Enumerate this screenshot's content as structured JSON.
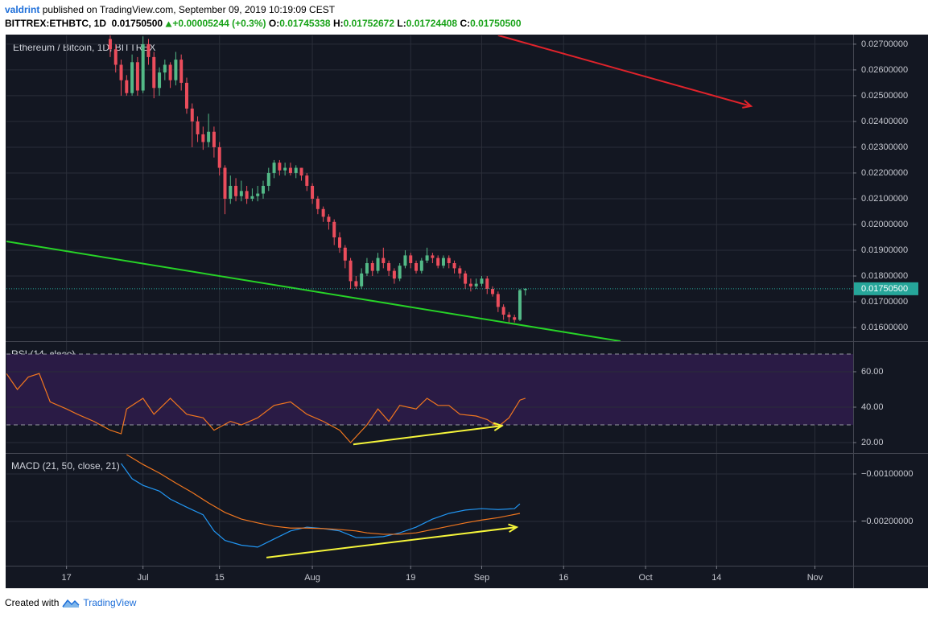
{
  "header": {
    "author": "valdrint",
    "published": "published on TradingView.com, September 09, 2019 10:19:09 CEST",
    "symbol": "BITTREX:ETHBTC, 1D",
    "last": "0.01750500",
    "change": "+0.00005244 (+0.3%)",
    "ohlc": [
      {
        "label": "O:",
        "value": "0.01745338"
      },
      {
        "label": "H:",
        "value": "0.01752672"
      },
      {
        "label": "L:",
        "value": "0.01724408"
      },
      {
        "label": "C:",
        "value": "0.01750500"
      }
    ]
  },
  "footer": {
    "created": "Created with",
    "brand": "TradingView"
  },
  "chart_data": [
    {
      "type": "candlestick",
      "title": "Ethereum / Bitcoin, 1D, BITTREX",
      "up_color": "#53b987",
      "down_color": "#eb4d5c",
      "x": [
        19,
        20,
        21,
        22,
        23,
        24,
        25,
        26,
        27,
        28,
        29,
        30,
        31,
        32,
        33,
        34,
        35,
        36,
        37,
        38,
        39,
        40,
        41,
        42,
        43,
        44,
        45,
        46,
        47,
        48,
        49,
        50,
        51,
        52,
        53,
        54,
        55,
        56,
        57,
        58,
        59,
        60,
        61,
        62,
        63,
        64,
        65,
        66,
        67,
        68,
        69,
        70,
        71,
        72,
        73,
        74,
        75,
        76,
        77,
        78,
        79,
        80,
        81,
        82,
        83,
        84,
        85,
        86,
        87,
        88,
        89,
        90,
        91,
        92,
        93,
        94,
        95
      ],
      "open": [
        0.0272,
        0.0268,
        0.0262,
        0.0256,
        0.0251,
        0.0263,
        0.0252,
        0.027,
        0.0265,
        0.0253,
        0.0259,
        0.0262,
        0.0256,
        0.0264,
        0.0255,
        0.0245,
        0.024,
        0.0235,
        0.0232,
        0.0236,
        0.023,
        0.0222,
        0.021,
        0.0215,
        0.0211,
        0.0213,
        0.021,
        0.0211,
        0.0212,
        0.0215,
        0.022,
        0.0224,
        0.0221,
        0.0222,
        0.022,
        0.0222,
        0.0219,
        0.0215,
        0.021,
        0.0206,
        0.0203,
        0.0201,
        0.0195,
        0.0191,
        0.0186,
        0.0178,
        0.0176,
        0.0181,
        0.0185,
        0.0182,
        0.0187,
        0.0185,
        0.0182,
        0.0179,
        0.0184,
        0.0188,
        0.0185,
        0.0182,
        0.0186,
        0.0188,
        0.0187,
        0.0184,
        0.0187,
        0.0185,
        0.0183,
        0.0181,
        0.0177,
        0.0176,
        0.0177,
        0.0179,
        0.0175,
        0.0173,
        0.0168,
        0.0165,
        0.0164,
        0.0163,
        0.01745338
      ],
      "high": [
        0.0274,
        0.027,
        0.0264,
        0.0258,
        0.0266,
        0.0265,
        0.0273,
        0.0272,
        0.0267,
        0.0261,
        0.0264,
        0.0263,
        0.0267,
        0.0266,
        0.0257,
        0.0247,
        0.0242,
        0.0238,
        0.0243,
        0.0238,
        0.0232,
        0.0223,
        0.0219,
        0.0218,
        0.0217,
        0.0215,
        0.0214,
        0.0215,
        0.0217,
        0.0222,
        0.0225,
        0.0225,
        0.0224,
        0.0224,
        0.0223,
        0.0222,
        0.022,
        0.0216,
        0.0211,
        0.0207,
        0.0204,
        0.0202,
        0.0197,
        0.0192,
        0.0187,
        0.018,
        0.0183,
        0.0187,
        0.0186,
        0.0189,
        0.0191,
        0.0186,
        0.0183,
        0.0185,
        0.019,
        0.0189,
        0.0186,
        0.0187,
        0.0191,
        0.0189,
        0.0188,
        0.0188,
        0.0188,
        0.0186,
        0.0184,
        0.0182,
        0.0179,
        0.0179,
        0.018,
        0.018,
        0.0176,
        0.0174,
        0.0169,
        0.0166,
        0.0165,
        0.0175,
        0.01752672
      ],
      "low": [
        0.0265,
        0.0259,
        0.025,
        0.025,
        0.025,
        0.025,
        0.0251,
        0.0262,
        0.0249,
        0.025,
        0.0256,
        0.0253,
        0.0254,
        0.0252,
        0.0243,
        0.023,
        0.0232,
        0.0229,
        0.023,
        0.0226,
        0.0219,
        0.0204,
        0.0208,
        0.0209,
        0.0209,
        0.0208,
        0.0209,
        0.0209,
        0.021,
        0.0213,
        0.0218,
        0.0219,
        0.0219,
        0.0219,
        0.0218,
        0.0217,
        0.0213,
        0.0208,
        0.0204,
        0.0201,
        0.0198,
        0.0192,
        0.0189,
        0.0183,
        0.0175,
        0.0175,
        0.0175,
        0.018,
        0.018,
        0.0181,
        0.0183,
        0.018,
        0.0177,
        0.0178,
        0.0183,
        0.0183,
        0.0181,
        0.0181,
        0.0185,
        0.0185,
        0.0183,
        0.0183,
        0.0183,
        0.0181,
        0.0179,
        0.0175,
        0.0174,
        0.0175,
        0.0176,
        0.0173,
        0.0172,
        0.0166,
        0.0163,
        0.0162,
        0.0162,
        0.01625,
        0.01724408
      ],
      "close": [
        0.0268,
        0.0262,
        0.0256,
        0.0251,
        0.0263,
        0.0252,
        0.027,
        0.0265,
        0.0253,
        0.0259,
        0.0262,
        0.0256,
        0.0264,
        0.0255,
        0.0245,
        0.024,
        0.0235,
        0.0232,
        0.0236,
        0.023,
        0.0222,
        0.021,
        0.0215,
        0.0211,
        0.0213,
        0.021,
        0.0211,
        0.0212,
        0.0215,
        0.022,
        0.0224,
        0.0221,
        0.0222,
        0.022,
        0.0222,
        0.0219,
        0.0215,
        0.021,
        0.0206,
        0.0203,
        0.0201,
        0.0195,
        0.0191,
        0.0186,
        0.0178,
        0.0176,
        0.0181,
        0.0185,
        0.0182,
        0.0187,
        0.0185,
        0.0182,
        0.0179,
        0.0184,
        0.0188,
        0.0185,
        0.0182,
        0.0186,
        0.0188,
        0.0187,
        0.0184,
        0.0187,
        0.0185,
        0.0183,
        0.0181,
        0.0177,
        0.0176,
        0.0177,
        0.0179,
        0.0175,
        0.0173,
        0.0168,
        0.0165,
        0.0164,
        0.0163,
        0.01745,
        0.017505
      ],
      "xlim": [
        0,
        155
      ],
      "xticks": [
        {
          "value": 11,
          "label": "17"
        },
        {
          "value": 25,
          "label": "Jul"
        },
        {
          "value": 39,
          "label": "15"
        },
        {
          "value": 56,
          "label": "Aug"
        },
        {
          "value": 74,
          "label": "19"
        },
        {
          "value": 87,
          "label": "Sep"
        },
        {
          "value": 102,
          "label": "16"
        },
        {
          "value": 117,
          "label": "Oct"
        },
        {
          "value": 130,
          "label": "14"
        },
        {
          "value": 148,
          "label": "Nov"
        }
      ],
      "ylim": [
        0.01547,
        0.02734
      ],
      "yticks": [
        {
          "value": 0.016,
          "label": "0.01600000"
        },
        {
          "value": 0.017,
          "label": "0.01700000"
        },
        {
          "value": 0.018,
          "label": "0.01800000"
        },
        {
          "value": 0.019,
          "label": "0.01900000"
        },
        {
          "value": 0.02,
          "label": "0.02000000"
        },
        {
          "value": 0.021,
          "label": "0.02100000"
        },
        {
          "value": 0.022,
          "label": "0.02200000"
        },
        {
          "value": 0.023,
          "label": "0.02300000"
        },
        {
          "value": 0.024,
          "label": "0.02400000"
        },
        {
          "value": 0.025,
          "label": "0.02500000"
        },
        {
          "value": 0.026,
          "label": "0.02600000"
        },
        {
          "value": 0.027,
          "label": "0.02700000"
        }
      ],
      "grid": true,
      "last_price": {
        "value": 0.017505,
        "label": "0.01750500",
        "color": "#26a69a"
      },
      "lines": [
        {
          "color": "#27d327",
          "arrow": false,
          "x": [
            0,
            112.4
          ],
          "y": [
            0.019344,
            0.015469
          ]
        },
        {
          "color": "#e0232b",
          "arrow": true,
          "x": [
            90,
            136.3
          ],
          "y": [
            0.027344,
            0.024594
          ]
        }
      ]
    },
    {
      "type": "line",
      "title": "RSI (14, close)",
      "ylim": [
        14.1,
        76.8
      ],
      "yticks": [
        {
          "value": 20,
          "label": "20.00"
        },
        {
          "value": 40,
          "label": "40.00"
        },
        {
          "value": 60,
          "label": "60.00"
        }
      ],
      "band": [
        30,
        70
      ],
      "band_color": "#2a1b45",
      "hlines": [
        30,
        70
      ],
      "grid": true,
      "series": [
        {
          "color": "#f0761f",
          "x": [
            0,
            2,
            4,
            6,
            8,
            11,
            13,
            16,
            19,
            21,
            22,
            25,
            27,
            30,
            33,
            36,
            38,
            41,
            43,
            46,
            49,
            52,
            55,
            58,
            61,
            63,
            66,
            68,
            70,
            72,
            75,
            77,
            79,
            81,
            83,
            86,
            88,
            90,
            92,
            94,
            95
          ],
          "values": [
            59,
            50,
            57,
            59,
            43,
            39,
            36,
            32,
            27,
            25,
            39,
            45,
            36,
            45,
            36,
            34,
            27,
            32,
            30,
            34,
            41,
            43,
            36,
            32,
            27,
            20,
            30,
            39,
            32,
            41,
            39,
            45,
            41,
            41,
            36,
            35,
            33,
            29,
            34,
            44,
            45
          ]
        }
      ],
      "lines": [
        {
          "color": "#f5f53a",
          "arrow": true,
          "x": [
            63.5,
            90.7
          ],
          "y": [
            19,
            29.5
          ]
        }
      ]
    },
    {
      "type": "line",
      "title": "MACD (21, 50, close, 21)",
      "ylim": [
        -0.002932,
        -0.000576
      ],
      "yticks": [
        {
          "value": -0.002,
          "label": "−0.00200000"
        },
        {
          "value": -0.001,
          "label": "−0.00100000"
        }
      ],
      "grid": true,
      "series": [
        {
          "color": "#2196f3",
          "x": [
            21,
            23,
            25,
            28,
            30,
            33,
            36,
            38,
            40,
            43,
            46,
            49,
            52,
            55,
            58,
            61,
            64,
            66,
            69,
            72,
            75,
            78,
            81,
            84,
            87,
            90,
            93,
            94
          ],
          "values": [
            -0.00078,
            -0.0011,
            -0.00124,
            -0.00136,
            -0.00153,
            -0.0017,
            -0.00186,
            -0.0022,
            -0.0024,
            -0.0025,
            -0.00254,
            -0.00237,
            -0.0022,
            -0.00212,
            -0.00215,
            -0.0022,
            -0.00234,
            -0.00234,
            -0.00232,
            -0.00224,
            -0.00212,
            -0.00195,
            -0.00183,
            -0.00176,
            -0.00173,
            -0.00175,
            -0.00173,
            -0.00163
          ]
        },
        {
          "color": "#f0761f",
          "x": [
            22,
            25,
            28,
            31,
            34,
            37,
            40,
            43,
            46,
            49,
            52,
            55,
            58,
            61,
            64,
            66,
            69,
            72,
            75,
            78,
            81,
            84,
            87,
            90,
            94
          ],
          "values": [
            -0.00059,
            -0.0008,
            -0.00098,
            -0.00119,
            -0.00139,
            -0.00161,
            -0.00181,
            -0.00195,
            -0.00203,
            -0.0021,
            -0.00214,
            -0.00214,
            -0.00215,
            -0.00217,
            -0.0022,
            -0.00224,
            -0.00227,
            -0.00227,
            -0.00224,
            -0.00217,
            -0.0021,
            -0.00203,
            -0.00197,
            -0.00192,
            -0.00183
          ]
        }
      ],
      "lines": [
        {
          "color": "#f5f53a",
          "arrow": true,
          "x": [
            47.6,
            93.4
          ],
          "y": [
            -0.00276,
            -0.00212
          ]
        }
      ]
    }
  ]
}
